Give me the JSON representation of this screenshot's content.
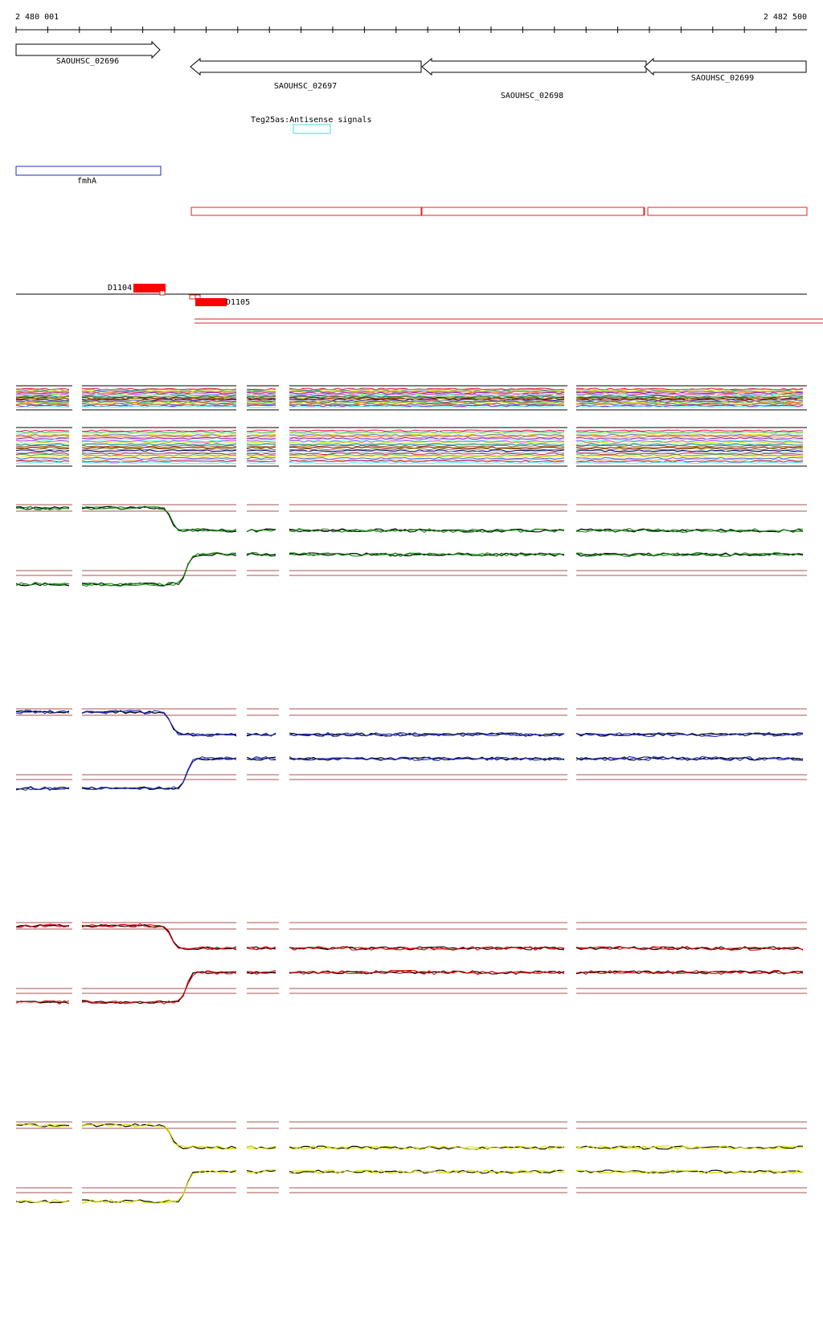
{
  "ruler": {
    "start_label": "2 480 001",
    "end_label": "2 482 500"
  },
  "genes": [
    {
      "id": "SAOUHSC_02696",
      "strand": "+"
    },
    {
      "id": "SAOUHSC_02697",
      "strand": "-"
    },
    {
      "id": "SAOUHSC_02698",
      "strand": "-"
    },
    {
      "id": "SAOUHSC_02699",
      "strand": "-"
    }
  ],
  "signal_label": "Teg25as:Antisense signals",
  "annotation_label": "fmhA",
  "blocks": [
    {
      "label": "D1104"
    },
    {
      "label": "D1105"
    }
  ],
  "colors": {
    "gene_outline": "#000000",
    "signal_box": "#3fdfe6",
    "annotation_box": "#1f2fb5",
    "red_track": "#e02020",
    "threshold": "#8b1a1a",
    "panel_accents": [
      "#1a8a1a",
      "#1f2fb5",
      "#d01010",
      "#e0e020"
    ]
  }
}
